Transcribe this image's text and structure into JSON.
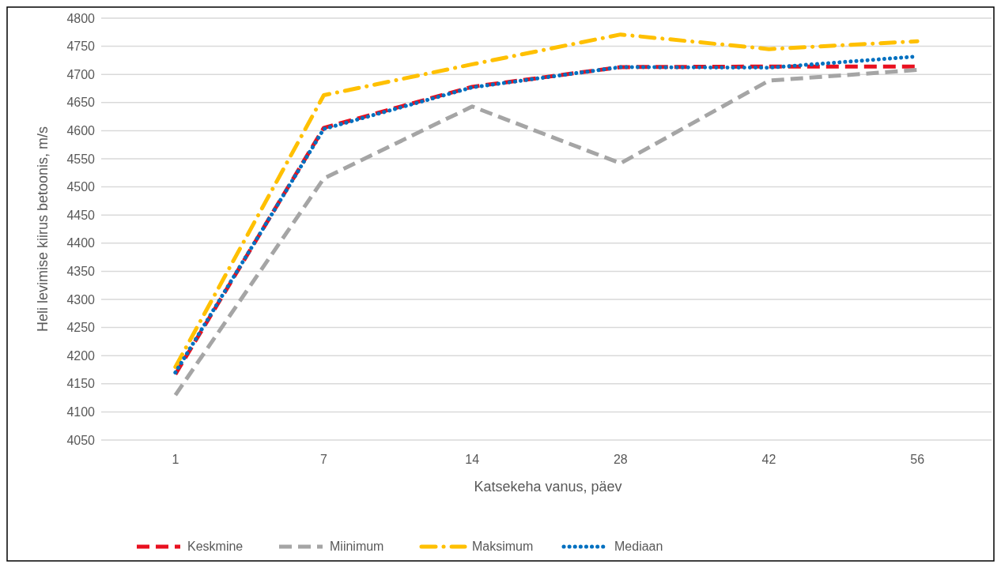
{
  "chart_data": {
    "type": "line",
    "xlabel": "Katsekeha vanus, päev",
    "ylabel": "Heli levimise kiirus betoonis, m/s",
    "categories": [
      "1",
      "7",
      "14",
      "28",
      "42",
      "56"
    ],
    "series": [
      {
        "name": "Keskmine",
        "color": "#e8101f",
        "line_style": "dashed",
        "values": [
          4167,
          4605,
          4678,
          4713,
          4714,
          4714
        ]
      },
      {
        "name": "Miinimum",
        "color": "#a5a5a5",
        "line_style": "dashed",
        "values": [
          4130,
          4515,
          4643,
          4542,
          4689,
          4708
        ]
      },
      {
        "name": "Maksimum",
        "color": "#ffc000",
        "line_style": "dashdot",
        "values": [
          4180,
          4663,
          4718,
          4771,
          4745,
          4759
        ]
      },
      {
        "name": "Mediaan",
        "color": "#0070c0",
        "line_style": "dotted",
        "values": [
          4170,
          4603,
          4677,
          4713,
          4712,
          4732
        ]
      }
    ],
    "ylim": [
      4050,
      4800
    ],
    "yticks": [
      4050,
      4100,
      4150,
      4200,
      4250,
      4300,
      4350,
      4400,
      4450,
      4500,
      4550,
      4600,
      4650,
      4700,
      4750,
      4800
    ],
    "grid": "y",
    "legend": "bottom",
    "marker": "none"
  }
}
